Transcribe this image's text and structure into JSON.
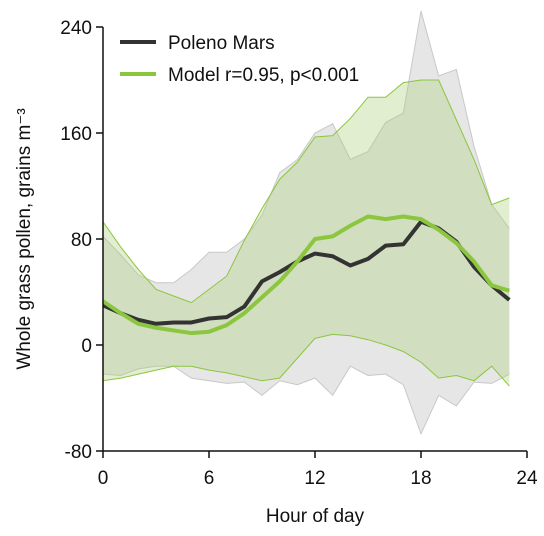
{
  "chart_data": {
    "type": "line",
    "xlabel": "Hour of day",
    "ylabel": "Whole grass pollen, grains m⁻³",
    "x": [
      0,
      1,
      2,
      3,
      4,
      5,
      6,
      7,
      8,
      9,
      10,
      11,
      12,
      13,
      14,
      15,
      16,
      17,
      18,
      19,
      20,
      21,
      22,
      23
    ],
    "xlim": [
      0,
      24
    ],
    "xticks": [
      0,
      6,
      12,
      18,
      24
    ],
    "ylim": [
      -80,
      240
    ],
    "yticks": [
      -80,
      0,
      80,
      160,
      240
    ],
    "legend": "upper left",
    "bands": [
      {
        "color": "#e6e6e6",
        "edge": "#c8c8c8",
        "upper": [
          82,
          68,
          53,
          47,
          47,
          57,
          70,
          70,
          80,
          98,
          130,
          140,
          160,
          167,
          140,
          146,
          168,
          175,
          252,
          203,
          208,
          150,
          106,
          88
        ],
        "lower": [
          -22,
          -23,
          -18,
          -16,
          -16,
          -25,
          -27,
          -29,
          -28,
          -38,
          -27,
          -30,
          -25,
          -38,
          -16,
          -23,
          -22,
          -30,
          -67,
          -38,
          -46,
          -28,
          -29,
          -22
        ]
      },
      {
        "color": "rgba(170,205,120,0.35)",
        "edge": "#8cc63f",
        "upper": [
          93,
          74,
          57,
          42,
          37,
          32,
          42,
          52,
          79,
          103,
          125,
          138,
          157,
          158,
          171,
          187,
          187,
          198,
          200,
          200,
          170,
          140,
          106,
          111
        ],
        "lower": [
          -27,
          -25,
          -22,
          -19,
          -16,
          -16,
          -19,
          -21,
          -24,
          -27,
          -25,
          -10,
          5,
          8,
          7,
          4,
          0,
          -5,
          -13,
          -25,
          -23,
          -27,
          -16,
          -31
        ]
      }
    ],
    "series": [
      {
        "name": "Poleno Mars",
        "color": "#333333",
        "values": [
          30,
          24,
          19,
          16,
          17,
          17,
          20,
          21,
          29,
          48,
          55,
          63,
          69,
          67,
          60,
          65,
          75,
          76,
          93,
          88,
          78,
          59,
          45,
          34
        ]
      },
      {
        "name": "Model r=0.95, p<0.001",
        "color": "#8cc63f",
        "values": [
          33,
          24,
          16,
          13,
          11,
          9,
          10,
          15,
          24,
          36,
          48,
          63,
          80,
          82,
          90,
          97,
          95,
          97,
          95,
          87,
          77,
          63,
          45,
          41
        ]
      }
    ]
  }
}
